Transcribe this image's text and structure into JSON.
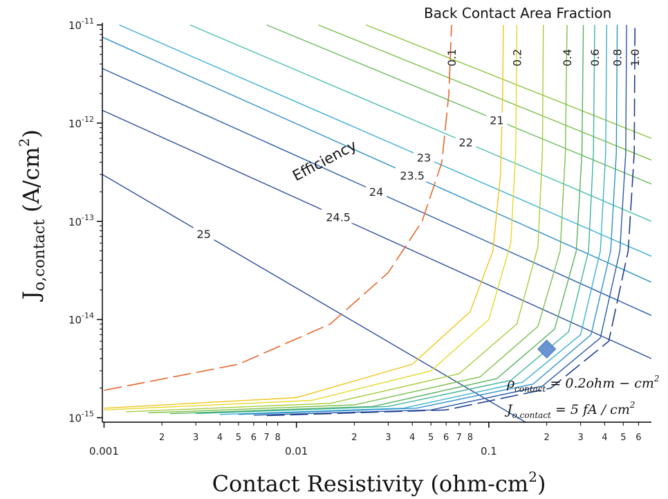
{
  "chart_data": {
    "type": "contour",
    "xlabel": "Contact Resistivity (ohm-cm",
    "xlabel_sup": "2",
    "xlabel_close": ")",
    "ylabel": "J",
    "ylabel_sub": "o,contact",
    "ylabel_rest": "(A/cm",
    "ylabel_sup": "2",
    "ylabel_close": ")",
    "x_scale": "log",
    "y_scale": "log",
    "xlim": [
      0.00098,
      0.7
    ],
    "ylim": [
      9e-16,
      1.05e-11
    ],
    "x_major_ticks": [
      {
        "value": 0.001,
        "label": "0.001"
      },
      {
        "value": 0.01,
        "label": "0.01"
      },
      {
        "value": 0.1,
        "label": "0.1"
      }
    ],
    "x_minor_ticks": [
      {
        "value": 0.002,
        "label": "2"
      },
      {
        "value": 0.003,
        "label": "3"
      },
      {
        "value": 0.004,
        "label": "4"
      },
      {
        "value": 0.005,
        "label": "5"
      },
      {
        "value": 0.006,
        "label": "6"
      },
      {
        "value": 0.007,
        "label": "7"
      },
      {
        "value": 0.008,
        "label": "8"
      },
      {
        "value": 0.02,
        "label": "2"
      },
      {
        "value": 0.03,
        "label": "3"
      },
      {
        "value": 0.04,
        "label": "4"
      },
      {
        "value": 0.05,
        "label": "5"
      },
      {
        "value": 0.06,
        "label": "6"
      },
      {
        "value": 0.07,
        "label": "7"
      },
      {
        "value": 0.08,
        "label": "8"
      },
      {
        "value": 0.2,
        "label": "2"
      },
      {
        "value": 0.3,
        "label": "3"
      },
      {
        "value": 0.4,
        "label": "4"
      },
      {
        "value": 0.5,
        "label": "5"
      },
      {
        "value": 0.6,
        "label": "6"
      }
    ],
    "y_major_ticks": [
      {
        "exp": -11,
        "base": "10",
        "sup": "-11"
      },
      {
        "exp": -12,
        "base": "10",
        "sup": "-12"
      },
      {
        "exp": -13,
        "base": "10",
        "sup": "-13"
      },
      {
        "exp": -14,
        "base": "10",
        "sup": "-14"
      },
      {
        "exp": -15,
        "base": "10",
        "sup": "-15"
      }
    ],
    "efficiency_label": "Efficiency",
    "efficiency_contours": [
      {
        "label": "25",
        "color": "#2a4a9a",
        "x": [
          0.00098,
          0.7
        ],
        "y": [
          3e-13,
          1.6e-16
        ]
      },
      {
        "label": "24.5",
        "color": "#2a4a9a",
        "x": [
          0.00098,
          0.7
        ],
        "y": [
          1.35e-12,
          4e-15
        ]
      },
      {
        "label": "24",
        "color": "#2a5aa8",
        "x": [
          0.00098,
          0.7
        ],
        "y": [
          3.6e-12,
          1.1e-14
        ]
      },
      {
        "label": "23.5",
        "color": "#2f8fc8",
        "x": [
          0.00098,
          0.7
        ],
        "y": [
          7.5e-12,
          2.4e-14
        ]
      },
      {
        "label": "23",
        "color": "#3aaed8",
        "x": [
          0.0012,
          0.7
        ],
        "y": [
          1e-11,
          4.4e-14
        ]
      },
      {
        "label": "22",
        "color": "#4cbfb0",
        "x": [
          0.0028,
          0.7
        ],
        "y": [
          1e-11,
          1e-13
        ]
      },
      {
        "label": "21",
        "color": "#6abb5e",
        "x": [
          0.007,
          0.7
        ],
        "y": [
          1e-11,
          2.4e-13
        ]
      },
      {
        "label": "",
        "color": "#7cbf4a",
        "x": [
          0.013,
          0.7
        ],
        "y": [
          1e-11,
          4.2e-13
        ]
      },
      {
        "label": "",
        "color": "#8cc43c",
        "x": [
          0.023,
          0.7
        ],
        "y": [
          1e-11,
          7e-13
        ]
      }
    ],
    "area_fraction_title": "Back Contact Area Fraction",
    "area_fraction_curves": [
      {
        "label": "0.1",
        "color": "#e8642a",
        "dashed": true,
        "x": [
          0.001,
          0.005,
          0.015,
          0.03,
          0.045,
          0.057,
          0.062,
          0.064
        ],
        "y": [
          1.9e-15,
          3.5e-15,
          9e-15,
          3e-14,
          1e-13,
          4e-13,
          2e-12,
          1e-11
        ]
      },
      {
        "label": "",
        "color": "#f0c419",
        "dashed": false,
        "x": [
          0.001,
          0.01,
          0.04,
          0.08,
          0.105,
          0.115,
          0.118,
          0.119
        ],
        "y": [
          1.25e-15,
          1.6e-15,
          3.5e-15,
          1.2e-14,
          5e-14,
          3e-13,
          2e-12,
          1e-11
        ]
      },
      {
        "label": "0.2",
        "color": "#e6d82a",
        "dashed": false,
        "x": [
          0.001,
          0.012,
          0.05,
          0.1,
          0.13,
          0.138,
          0.14
        ],
        "y": [
          1.2e-15,
          1.5e-15,
          3e-15,
          1e-14,
          6e-14,
          5e-13,
          1e-11
        ]
      },
      {
        "label": "",
        "color": "#a6cc3a",
        "dashed": false,
        "x": [
          0.0013,
          0.015,
          0.07,
          0.14,
          0.18,
          0.19,
          0.192
        ],
        "y": [
          1.15e-15,
          1.4e-15,
          2.8e-15,
          9e-15,
          5.5e-14,
          5e-13,
          1e-11
        ]
      },
      {
        "label": "0.4",
        "color": "#7cbf4a",
        "dashed": false,
        "x": [
          0.0017,
          0.02,
          0.09,
          0.18,
          0.235,
          0.25,
          0.255
        ],
        "y": [
          1.12e-15,
          1.35e-15,
          2.6e-15,
          8.5e-15,
          5e-14,
          5e-13,
          1e-11
        ]
      },
      {
        "label": "",
        "color": "#56b05a",
        "dashed": false,
        "x": [
          0.0022,
          0.025,
          0.11,
          0.22,
          0.285,
          0.305,
          0.31
        ],
        "y": [
          1.1e-15,
          1.3e-15,
          2.5e-15,
          8e-15,
          5e-14,
          5e-13,
          1e-11
        ]
      },
      {
        "label": "0.6",
        "color": "#3eb39a",
        "dashed": false,
        "x": [
          0.003,
          0.03,
          0.13,
          0.26,
          0.33,
          0.35,
          0.355
        ],
        "y": [
          1.1e-15,
          1.3e-15,
          2.4e-15,
          7.5e-15,
          5e-14,
          5e-13,
          1e-11
        ]
      },
      {
        "label": "",
        "color": "#3ab0d2",
        "dashed": false,
        "x": [
          0.004,
          0.036,
          0.15,
          0.3,
          0.38,
          0.405,
          0.41
        ],
        "y": [
          1.08e-15,
          1.25e-15,
          2.3e-15,
          7e-15,
          5e-14,
          5e-13,
          1e-11
        ]
      },
      {
        "label": "0.8",
        "color": "#2f8fc8",
        "dashed": false,
        "x": [
          0.005,
          0.042,
          0.17,
          0.34,
          0.43,
          0.46,
          0.465
        ],
        "y": [
          1.08e-15,
          1.25e-15,
          2.2e-15,
          7e-15,
          5e-14,
          5e-13,
          1e-11
        ]
      },
      {
        "label": "",
        "color": "#2a5aa8",
        "dashed": false,
        "x": [
          0.006,
          0.05,
          0.19,
          0.38,
          0.48,
          0.515,
          0.52
        ],
        "y": [
          1.06e-15,
          1.2e-15,
          2.1e-15,
          6.5e-15,
          5e-14,
          5e-13,
          1e-11
        ]
      },
      {
        "label": "1.0",
        "color": "#1f3c8c",
        "dashed": true,
        "x": [
          0.007,
          0.06,
          0.21,
          0.42,
          0.53,
          0.57,
          0.575
        ],
        "y": [
          1.05e-15,
          1.2e-15,
          2e-15,
          6e-15,
          5e-14,
          5e-13,
          1e-11
        ]
      }
    ],
    "marker": {
      "x": 0.2,
      "y": 5e-15,
      "color": "#6a93d2"
    },
    "annotations": {
      "rho_sym": "ρ",
      "rho_sub": "contact",
      "rho_eq": "= 0.2ohm − cm",
      "rho_sup": "2",
      "j_sym": "J",
      "j_sub": "o,contact",
      "j_eq": "= 5 fA / cm",
      "j_sup": "2"
    }
  }
}
